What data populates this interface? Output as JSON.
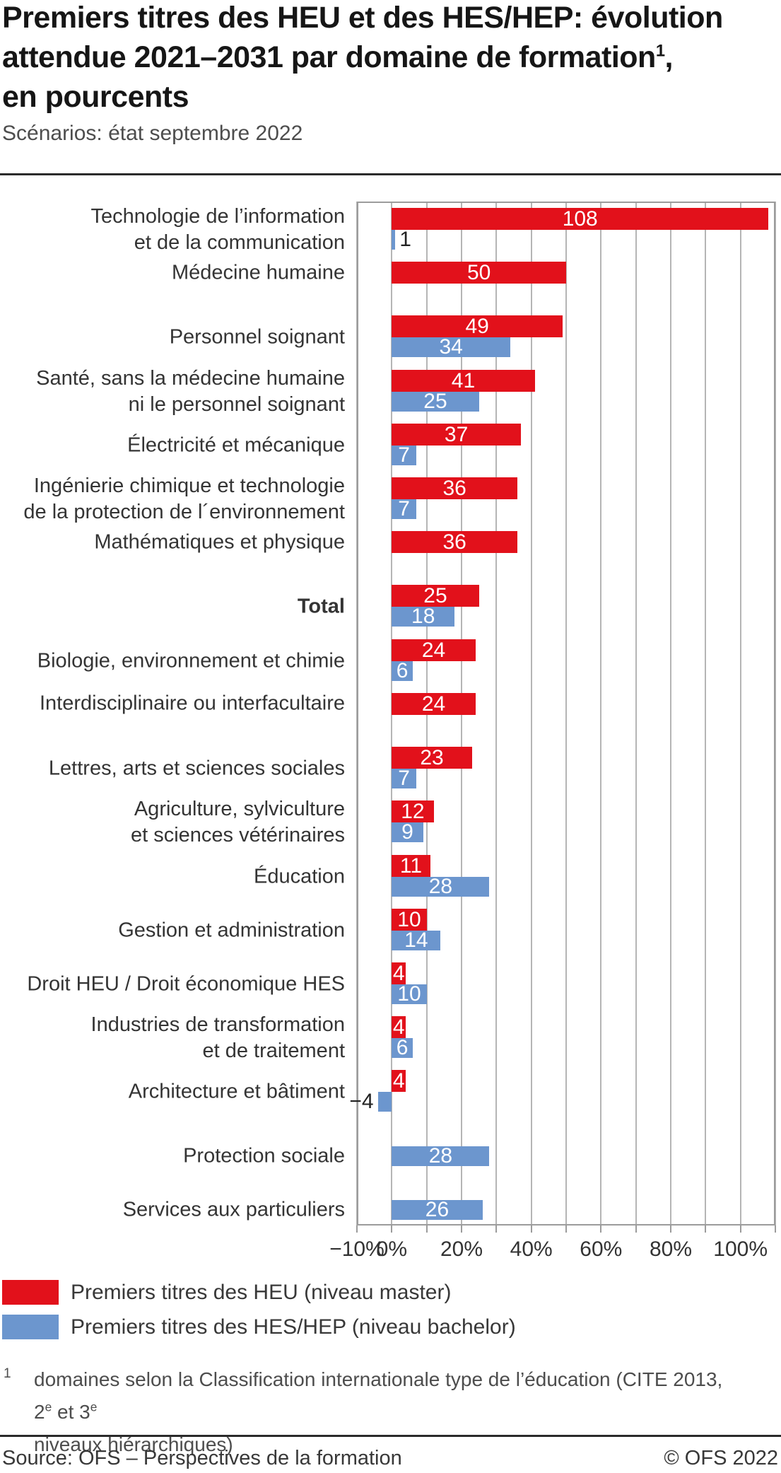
{
  "title": {
    "line1": "Premiers titres des HEU et des HES/HEP: évolution",
    "line2_pre": "attendue 2021–2031 par domaine de formation",
    "line2_sup": "1",
    "line2_post": ",",
    "line3": "en pourcents"
  },
  "subtitle": "Scénarios: état septembre 2022",
  "chart_data": {
    "type": "bar",
    "orientation": "horizontal",
    "x_axis": {
      "min": -10,
      "max": 110,
      "gridline_step": 10,
      "tick_values": [
        -10,
        0,
        20,
        40,
        60,
        80,
        100
      ],
      "tick_labels": [
        "−10%",
        "0%",
        "20%",
        "40%",
        "60%",
        "80%",
        "100%"
      ]
    },
    "series": [
      {
        "key": "heu",
        "name": "Premiers titres des HEU (niveau master)",
        "color": "#e2111b"
      },
      {
        "key": "hes",
        "name": "Premiers titres des HES/HEP (niveau bachelor)",
        "color": "#6c96ce"
      }
    ],
    "categories": [
      {
        "label_lines": [
          "Technologie de l’information",
          "et de la communication"
        ],
        "heu": 108,
        "hes": 1,
        "bold": false
      },
      {
        "label_lines": [
          "Médecine humaine"
        ],
        "heu": 50,
        "hes": null,
        "bold": false
      },
      {
        "label_lines": [
          "Personnel soignant"
        ],
        "heu": 49,
        "hes": 34,
        "bold": false
      },
      {
        "label_lines": [
          "Santé, sans la médecine humaine",
          "ni le personnel soignant"
        ],
        "heu": 41,
        "hes": 25,
        "bold": false
      },
      {
        "label_lines": [
          "Électricité et mécanique"
        ],
        "heu": 37,
        "hes": 7,
        "bold": false
      },
      {
        "label_lines": [
          "Ingénierie chimique et technologie",
          "de la protection de l´environnement"
        ],
        "heu": 36,
        "hes": 7,
        "bold": false
      },
      {
        "label_lines": [
          "Mathématiques et physique"
        ],
        "heu": 36,
        "hes": null,
        "bold": false
      },
      {
        "label_lines": [
          "Total"
        ],
        "heu": 25,
        "hes": 18,
        "bold": true
      },
      {
        "label_lines": [
          "Biologie, environnement et chimie"
        ],
        "heu": 24,
        "hes": 6,
        "bold": false
      },
      {
        "label_lines": [
          "Interdisciplinaire ou interfacultaire"
        ],
        "heu": 24,
        "hes": null,
        "bold": false
      },
      {
        "label_lines": [
          "Lettres, arts et sciences sociales"
        ],
        "heu": 23,
        "hes": 7,
        "bold": false
      },
      {
        "label_lines": [
          "Agriculture, sylviculture",
          "et sciences vétérinaires"
        ],
        "heu": 12,
        "hes": 9,
        "bold": false
      },
      {
        "label_lines": [
          "Éducation"
        ],
        "heu": 11,
        "hes": 28,
        "bold": false
      },
      {
        "label_lines": [
          "Gestion et administration"
        ],
        "heu": 10,
        "hes": 14,
        "bold": false
      },
      {
        "label_lines": [
          "Droit HEU / Droit économique HES"
        ],
        "heu": 4,
        "hes": 10,
        "bold": false
      },
      {
        "label_lines": [
          "Industries de transformation",
          "et de traitement"
        ],
        "heu": 4,
        "hes": 6,
        "bold": false
      },
      {
        "label_lines": [
          "Architecture et bâtiment"
        ],
        "heu": 4,
        "hes": -4,
        "bold": false
      },
      {
        "label_lines": [
          "Protection sociale"
        ],
        "heu": null,
        "hes": 28,
        "bold": false
      },
      {
        "label_lines": [
          "Services aux particuliers"
        ],
        "heu": null,
        "hes": 26,
        "bold": false
      }
    ]
  },
  "footnote": {
    "marker": "1",
    "line1_part1": "domaines selon la Classification internationale type de l’éducation (CITE 2013, 2",
    "line1_sup1": "e",
    "line1_part2": " et 3",
    "line1_sup2": "e",
    "line2": "niveaux hiérarchiques)"
  },
  "footer": {
    "source": "Source: OFS – Perspectives de la formation",
    "copyright": "© OFS 2022"
  }
}
